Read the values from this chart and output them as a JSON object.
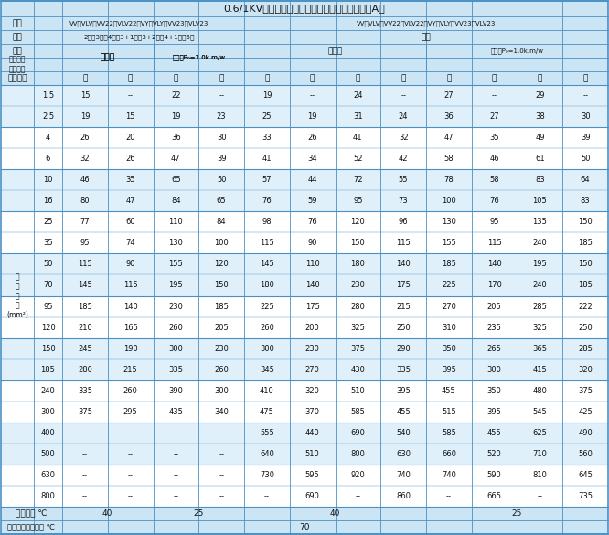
{
  "title": "0.6/1KV聚氯乙烯绝缘电力电缆允许持续载流量（A）",
  "header_bg": "#cce5f5",
  "title_bg": "#cce5f5",
  "alt_row_bg": "#dff0fa",
  "white_bg": "#ffffff",
  "border_color": "#4a90c4",
  "model_left": "VV、VLV、VV22、VLV22、VY、VLY、VV23、VLV23",
  "model_right": "VV、VLV、VV22、VLV22、VY、VLY、VV23、VLV23",
  "cores_left": "2芯、3芯、4芯、3+1芯、3+2芯、4+1芯、5芯",
  "cores_right": "单芯",
  "mat_headers": [
    "铜",
    "铝",
    "铜",
    "铝",
    "铜",
    "铝",
    "铜",
    "铝",
    "铜",
    "铝",
    "铜",
    "铝"
  ],
  "sections": [
    "1.5",
    "2.5",
    "4",
    "6",
    "10",
    "16",
    "25",
    "35",
    "50",
    "70",
    "95",
    "120",
    "150",
    "185",
    "240",
    "300",
    "400",
    "500",
    "630",
    "800"
  ],
  "data": [
    [
      "15",
      "--",
      "22",
      "--",
      "19",
      "--",
      "24",
      "--",
      "27",
      "--",
      "29",
      "--"
    ],
    [
      "19",
      "15",
      "19",
      "23",
      "25",
      "19",
      "31",
      "24",
      "36",
      "27",
      "38",
      "30"
    ],
    [
      "26",
      "20",
      "36",
      "30",
      "33",
      "26",
      "41",
      "32",
      "47",
      "35",
      "49",
      "39"
    ],
    [
      "32",
      "26",
      "47",
      "39",
      "41",
      "34",
      "52",
      "42",
      "58",
      "46",
      "61",
      "50"
    ],
    [
      "46",
      "35",
      "65",
      "50",
      "57",
      "44",
      "72",
      "55",
      "78",
      "58",
      "83",
      "64"
    ],
    [
      "80",
      "47",
      "84",
      "65",
      "76",
      "59",
      "95",
      "73",
      "100",
      "76",
      "105",
      "83"
    ],
    [
      "77",
      "60",
      "110",
      "84",
      "98",
      "76",
      "120",
      "96",
      "130",
      "95",
      "135",
      "150"
    ],
    [
      "95",
      "74",
      "130",
      "100",
      "115",
      "90",
      "150",
      "115",
      "155",
      "115",
      "240",
      "185"
    ],
    [
      "115",
      "90",
      "155",
      "120",
      "145",
      "110",
      "180",
      "140",
      "185",
      "140",
      "195",
      "150"
    ],
    [
      "145",
      "115",
      "195",
      "150",
      "180",
      "140",
      "230",
      "175",
      "225",
      "170",
      "240",
      "185"
    ],
    [
      "185",
      "140",
      "230",
      "185",
      "225",
      "175",
      "280",
      "215",
      "270",
      "205",
      "285",
      "222"
    ],
    [
      "210",
      "165",
      "260",
      "205",
      "260",
      "200",
      "325",
      "250",
      "310",
      "235",
      "325",
      "250"
    ],
    [
      "245",
      "190",
      "300",
      "230",
      "300",
      "230",
      "375",
      "290",
      "350",
      "265",
      "365",
      "285"
    ],
    [
      "280",
      "215",
      "335",
      "260",
      "345",
      "270",
      "430",
      "335",
      "395",
      "300",
      "415",
      "320"
    ],
    [
      "335",
      "260",
      "390",
      "300",
      "410",
      "320",
      "510",
      "395",
      "455",
      "350",
      "480",
      "375"
    ],
    [
      "375",
      "295",
      "435",
      "340",
      "475",
      "370",
      "585",
      "455",
      "515",
      "395",
      "545",
      "425"
    ],
    [
      "--",
      "--",
      "--",
      "--",
      "555",
      "440",
      "690",
      "540",
      "585",
      "455",
      "625",
      "490"
    ],
    [
      "--",
      "--",
      "--",
      "--",
      "640",
      "510",
      "800",
      "630",
      "660",
      "520",
      "710",
      "560"
    ],
    [
      "--",
      "--",
      "--",
      "--",
      "730",
      "595",
      "920",
      "740",
      "740",
      "590",
      "810",
      "645"
    ],
    [
      "--",
      "--",
      "--",
      "--",
      "--",
      "690",
      "--",
      "860",
      "--",
      "665",
      "--",
      "735"
    ]
  ]
}
